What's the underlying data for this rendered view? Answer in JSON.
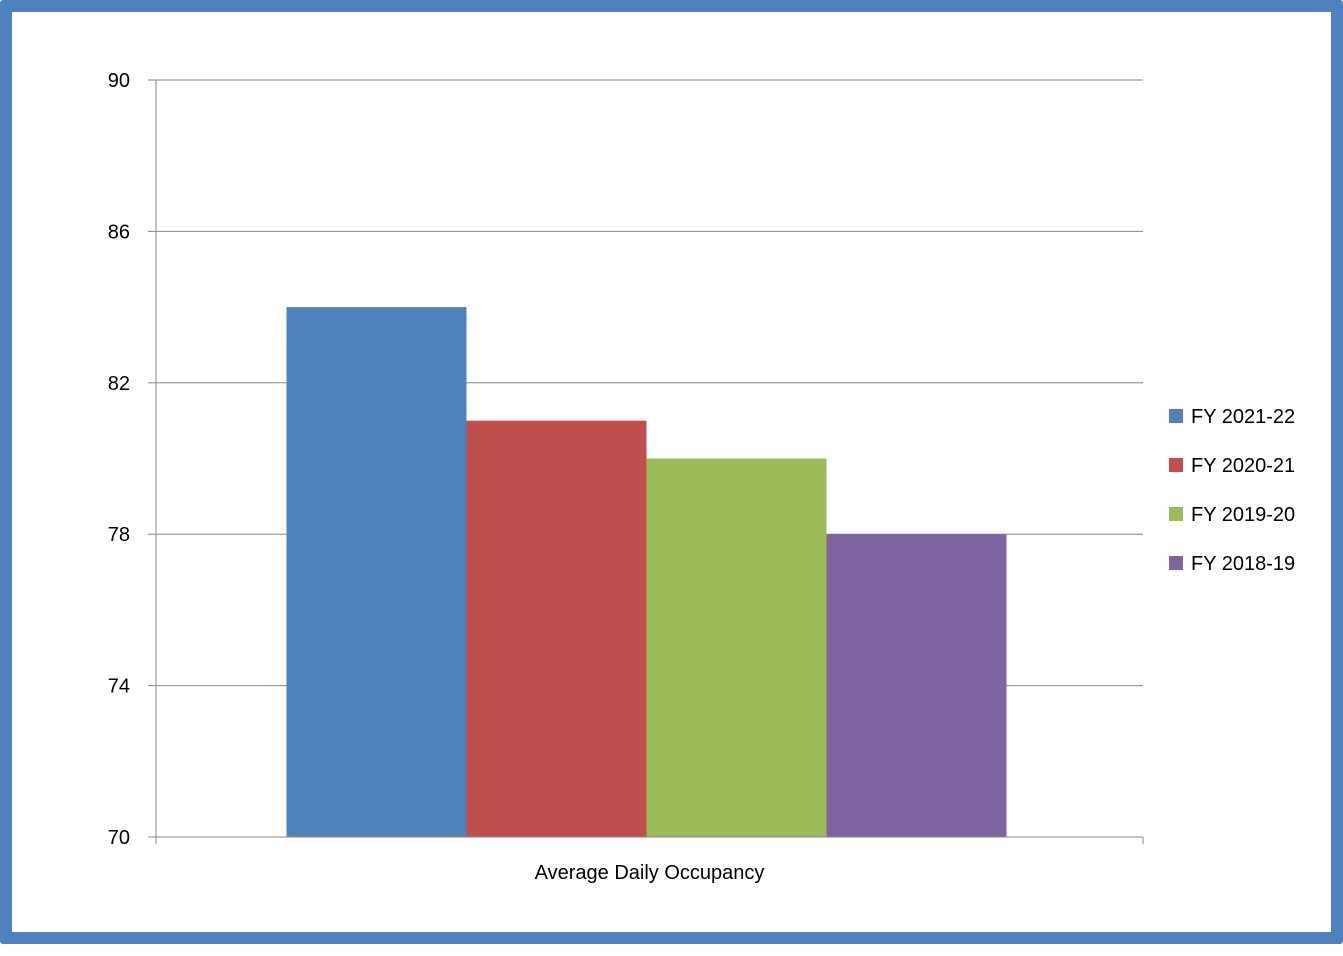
{
  "chart_data": {
    "type": "bar",
    "categories": [
      "Average Daily Occupancy"
    ],
    "series": [
      {
        "name": "FY 2021-22",
        "values": [
          84
        ],
        "color": "#4f81bd"
      },
      {
        "name": "FY 2020-21",
        "values": [
          81
        ],
        "color": "#c0504d"
      },
      {
        "name": "FY 2019-20",
        "values": [
          80
        ],
        "color": "#9bbb59"
      },
      {
        "name": "FY 2018-19",
        "values": [
          78
        ],
        "color": "#8064a2"
      }
    ],
    "yticks": [
      70,
      74,
      78,
      82,
      86,
      90
    ],
    "ylim": [
      70,
      90
    ],
    "grid": true,
    "legend_position": "right",
    "title": "",
    "xlabel": "",
    "ylabel": ""
  },
  "colors": {
    "frame_border": "#4f81bd",
    "gridline": "#868686",
    "axis": "#868686"
  }
}
